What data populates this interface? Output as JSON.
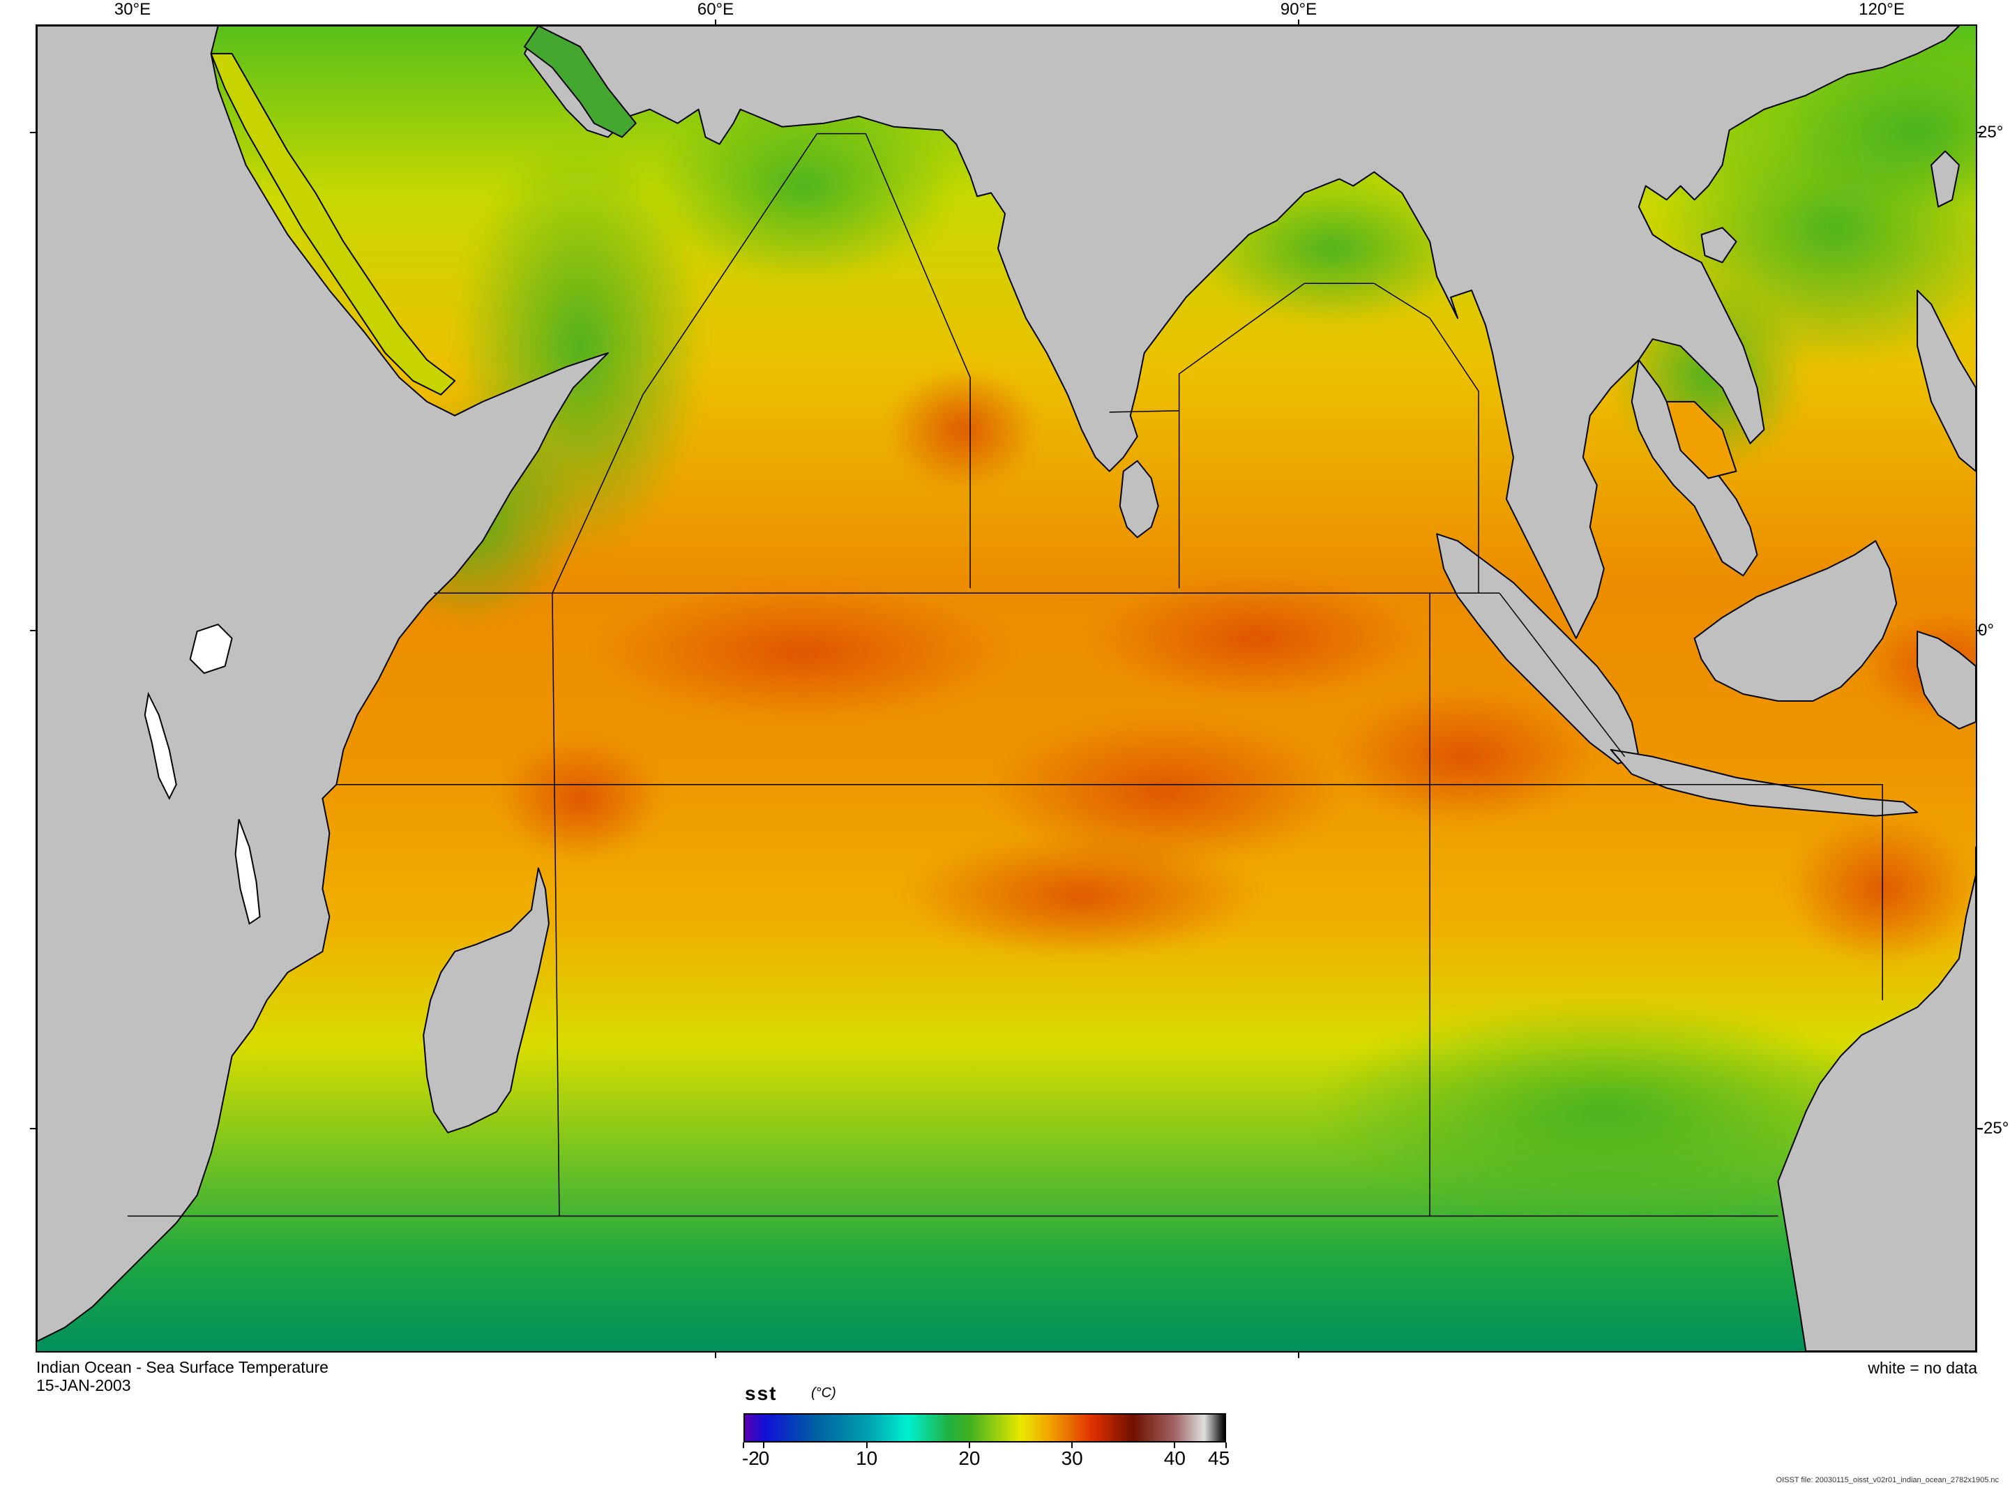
{
  "map": {
    "title": "Indian Ocean - Sea Surface Temperature",
    "date": "15-JAN-2003",
    "nodata_note": "white = no data",
    "file_note": "OISST file: 20030115_oisst_v02r01_indian_ocean_2782x1905.nc",
    "longitude_labels": [
      "30°E",
      "60°E",
      "90°E",
      "120°E"
    ],
    "latitude_labels": [
      "25°",
      "0°",
      "-25°"
    ],
    "land_color": "#c0c0c0",
    "colors": {
      "cold": "#008a5a",
      "cool": "#33b322",
      "mild": "#8fd000",
      "warm": "#e8e100",
      "hot": "#f0a400",
      "very_hot": "#e87800",
      "peak": "#dc4a00"
    }
  },
  "colorbar": {
    "variable": "sst",
    "unit": "(°C)",
    "min": -2,
    "max": 45,
    "tick_values": [
      -2,
      0,
      10,
      20,
      30,
      40,
      45
    ],
    "tick_labels": [
      "-2",
      "0",
      "10",
      "20",
      "30",
      "40",
      "45"
    ],
    "stops": [
      {
        "value": -2,
        "color": "#5a00b0"
      },
      {
        "value": 0,
        "color": "#1010d8"
      },
      {
        "value": 5,
        "color": "#0060a0"
      },
      {
        "value": 10,
        "color": "#00a0b0"
      },
      {
        "value": 14,
        "color": "#00f0d0"
      },
      {
        "value": 18,
        "color": "#20b040"
      },
      {
        "value": 20,
        "color": "#40b020"
      },
      {
        "value": 25,
        "color": "#e8e800"
      },
      {
        "value": 28,
        "color": "#f0a000"
      },
      {
        "value": 32,
        "color": "#e03000"
      },
      {
        "value": 36,
        "color": "#701000"
      },
      {
        "value": 40,
        "color": "#a06060"
      },
      {
        "value": 43,
        "color": "#e0e0e0"
      },
      {
        "value": 45,
        "color": "#000000"
      }
    ]
  }
}
